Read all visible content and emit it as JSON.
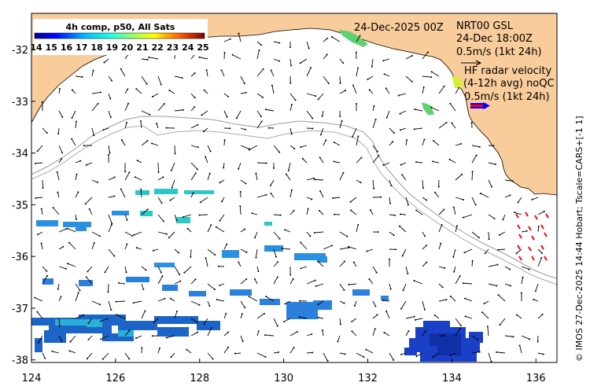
{
  "map": {
    "lon_range": [
      124,
      136.5
    ],
    "lat_range": [
      -38.05,
      -31.3
    ],
    "x_ticks": [
      "124",
      "126",
      "128",
      "130",
      "132",
      "134",
      "136"
    ],
    "y_ticks": [
      "-32",
      "-33",
      "-34",
      "-35",
      "-36",
      "-37",
      "-38"
    ],
    "land_color": "#f9cc9b",
    "coast_color": "#000000",
    "shelf_line_color": "#999999"
  },
  "colorbar": {
    "title": "4h comp, p50, All Sats",
    "labels": [
      "14",
      "15",
      "16",
      "17",
      "18",
      "19",
      "20",
      "21",
      "22",
      "23",
      "24",
      "25"
    ],
    "colors": [
      "#00008f",
      "#0000ff",
      "#0060ff",
      "#00bfff",
      "#20ffdf",
      "#7fff7f",
      "#dfff20",
      "#ffbf00",
      "#ff6000",
      "#ff0000",
      "#bf0000",
      "#800000"
    ]
  },
  "annotations": {
    "date": "24-Dec-2025 00Z",
    "station_line1": "NRT00 GSL",
    "station_line2": "24-Dec 18:00Z",
    "scale1": "0.5m/s (1kt 24h)",
    "hf_line1": "HF radar velocity",
    "hf_line2": "(4-12h avg) noQC",
    "scale2": "0.5m/s (1kt 24h)"
  },
  "credit": "© IMOS 27-Dec-2025 14:44 Hobart; Tscale=CARS+[-1 1]"
}
